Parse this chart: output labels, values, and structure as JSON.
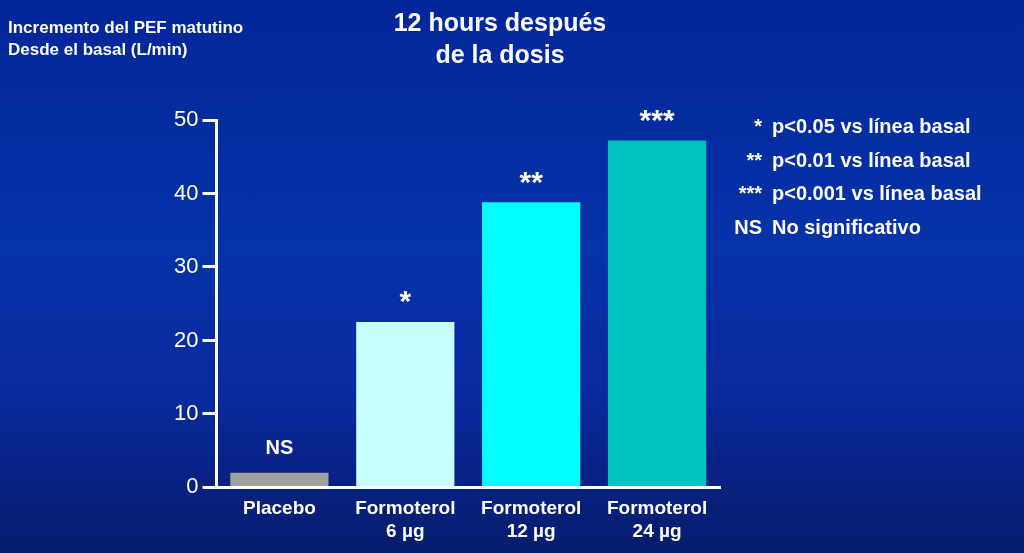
{
  "chart_data": {
    "type": "bar",
    "title": "12 hours después\nde la dosis",
    "ylabel": "Incremento del PEF matutino\nDesde el basal (L/min)",
    "categories": [
      "Placebo",
      "Formoterol\n6 µg",
      "Formoterol\n12 µg",
      "Formoterol\n24 µg"
    ],
    "values": [
      2.0,
      22.5,
      38.8,
      47.2
    ],
    "colors": [
      "#a0a0a0",
      "#c8ffff",
      "#00ffff",
      "#00c2be"
    ],
    "value_labels": [
      "NS",
      "*",
      "**",
      "***"
    ],
    "ylim": [
      0,
      50
    ],
    "yticks": [
      0,
      10,
      20,
      30,
      40,
      50
    ],
    "grid": false,
    "legend": false,
    "annotations": [
      "* p<0.05 vs línea basal",
      "** p<0.01 vs línea basal",
      "*** p<0.001 vs línea basal",
      "NS No significativo"
    ]
  }
}
